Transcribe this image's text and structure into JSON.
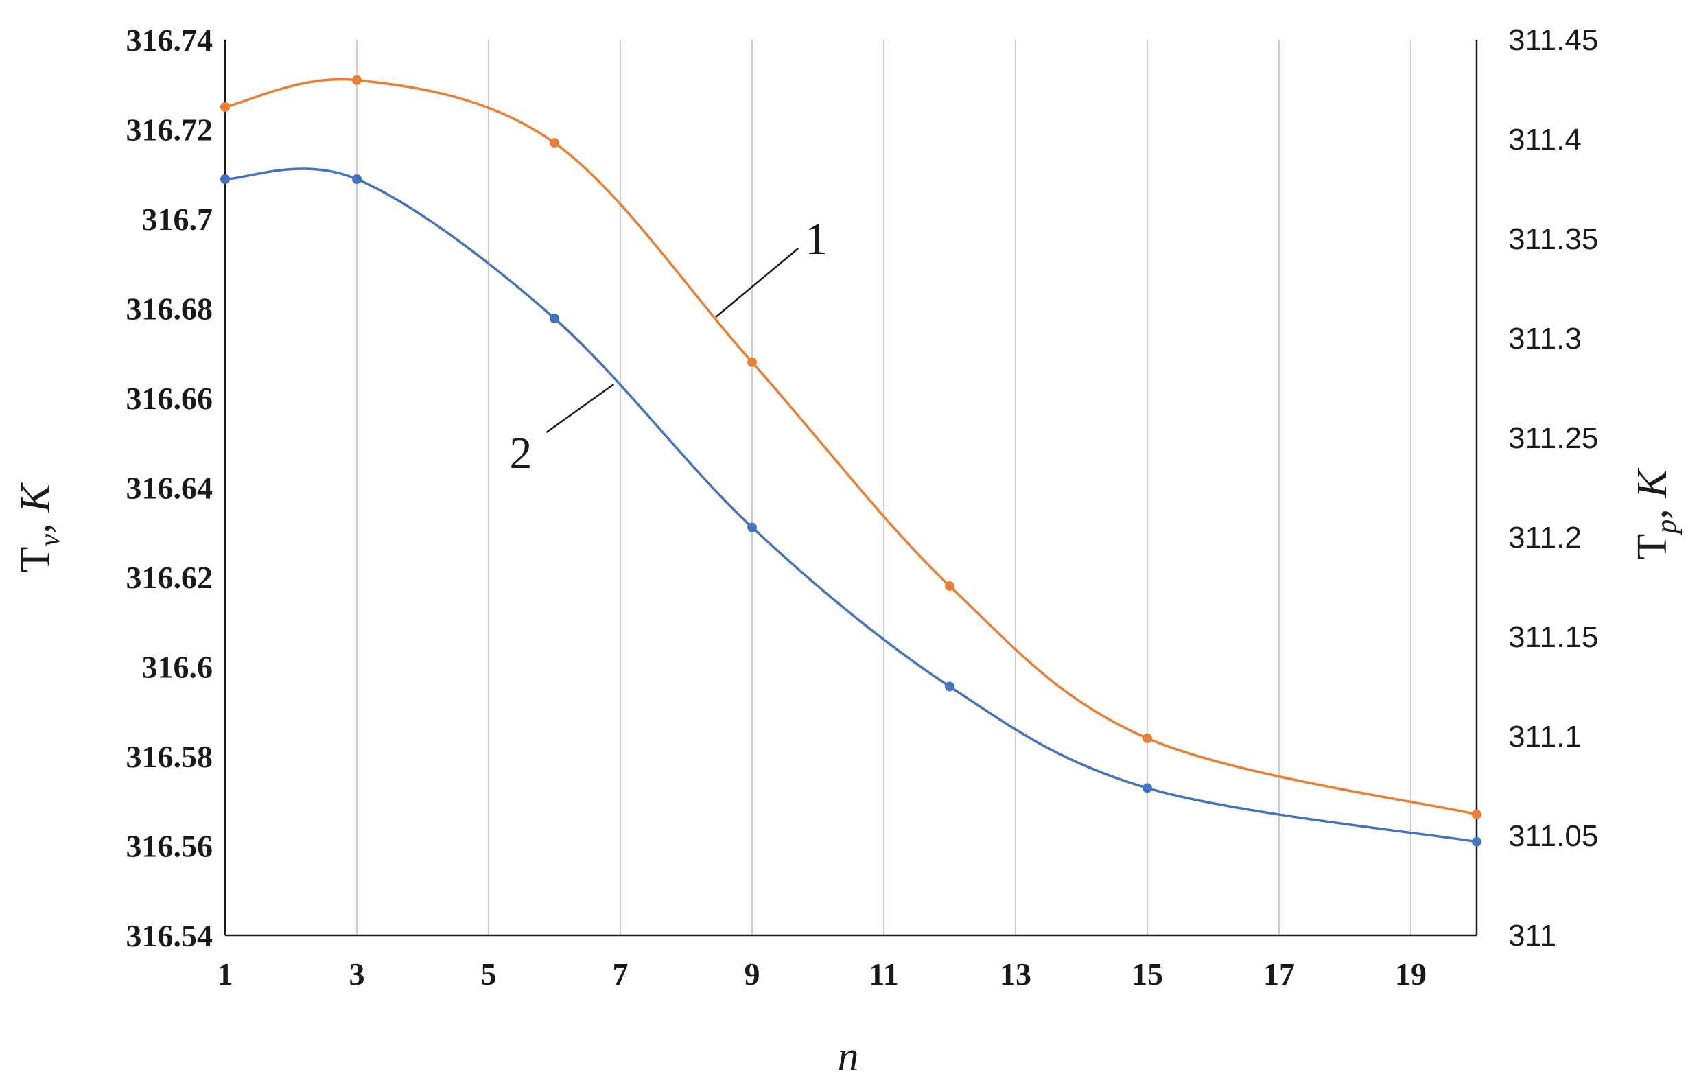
{
  "chart_data": {
    "type": "line",
    "title": "",
    "xlabel": "n",
    "ylabel_left": {
      "main": "T",
      "sub": "v",
      "unit": ", K"
    },
    "ylabel_right": {
      "main": "T",
      "sub": "p",
      "unit": ", K"
    },
    "xlim": [
      1,
      20
    ],
    "ylim_left": [
      316.54,
      316.74
    ],
    "ylim_right": [
      311,
      311.45
    ],
    "x_ticks": [
      "1",
      "3",
      "5",
      "7",
      "9",
      "11",
      "13",
      "15",
      "17",
      "19"
    ],
    "y_left_ticks": [
      "316.54",
      "316.56",
      "316.58",
      "316.6",
      "316.62",
      "316.64",
      "316.66",
      "316.68",
      "316.7",
      "316.72",
      "316.74"
    ],
    "y_right_ticks": [
      "311",
      "311.05",
      "311.1",
      "311.15",
      "311.2",
      "311.25",
      "311.3",
      "311.35",
      "311.4",
      "311.45"
    ],
    "grid": "vertical",
    "series": [
      {
        "name": "1",
        "axis": "left",
        "color": "#ED7D31",
        "x": [
          1,
          3,
          6,
          9,
          12,
          15,
          20
        ],
        "y": [
          316.725,
          316.731,
          316.717,
          316.668,
          316.618,
          316.584,
          316.567
        ]
      },
      {
        "name": "2",
        "axis": "right",
        "color": "#4472C4",
        "x": [
          1,
          3,
          6,
          9,
          12,
          15,
          20
        ],
        "y": [
          311.38,
          311.38,
          311.31,
          311.205,
          311.125,
          311.074,
          311.047
        ]
      }
    ]
  }
}
